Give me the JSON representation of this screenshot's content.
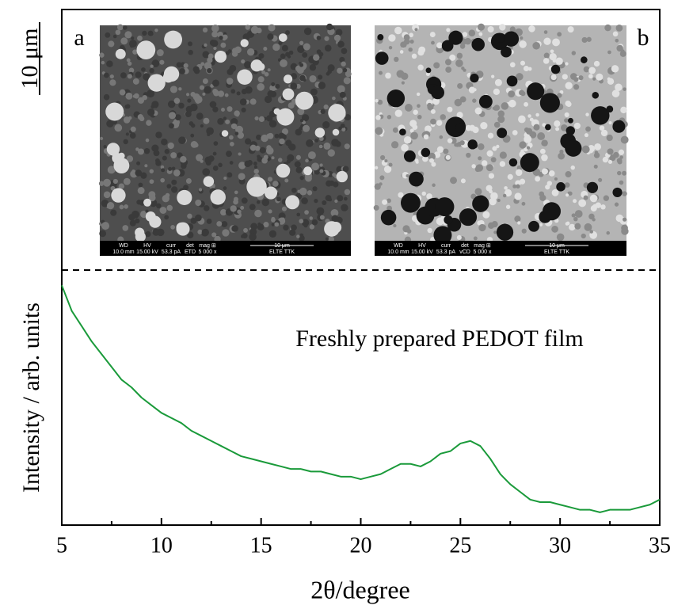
{
  "chart_data": {
    "type": "line",
    "xlabel": "2θ/degree",
    "ylabel": "Intensity / arb. units",
    "annotation": "Freshly prepared  PEDOT film",
    "scale_bar": "10 μm",
    "panels": [
      {
        "label": "a",
        "info_header": [
          "WD",
          "HV",
          "curr",
          "det",
          "mag ⊞",
          "10 μm"
        ],
        "info_values": [
          "10.0 mm",
          "15.00 kV",
          "53.3 pA",
          "ETD",
          "5 000 x",
          "ELTE TTK"
        ]
      },
      {
        "label": "b",
        "info_header": [
          "WD",
          "HV",
          "curr",
          "det",
          "mag ⊞",
          "10 μm"
        ],
        "info_values": [
          "10.0 mm",
          "15.00 kV",
          "53.3 pA",
          "vCD",
          "5 000 x",
          "ELTE TTK"
        ]
      }
    ],
    "x": [
      5,
      5.5,
      6,
      6.5,
      7,
      7.5,
      8,
      8.5,
      9,
      9.5,
      10,
      10.5,
      11,
      11.5,
      12,
      12.5,
      13,
      13.5,
      14,
      14.5,
      15,
      15.5,
      16,
      16.5,
      17,
      17.5,
      18,
      18.5,
      19,
      19.5,
      20,
      20.5,
      21,
      21.5,
      22,
      22.5,
      23,
      23.5,
      24,
      24.5,
      25,
      25.5,
      26,
      26.5,
      27,
      27.5,
      28,
      28.5,
      29,
      29.5,
      30,
      30.5,
      31,
      31.5,
      32,
      32.5,
      33,
      33.5,
      34,
      34.5,
      35
    ],
    "values": [
      94,
      84,
      78,
      72,
      67,
      62,
      57,
      54,
      50,
      47,
      44,
      42,
      40,
      37,
      35,
      33,
      31,
      29,
      27,
      26,
      25,
      24,
      23,
      22,
      22,
      21,
      21,
      20,
      19,
      19,
      18,
      19,
      20,
      22,
      24,
      24,
      23,
      25,
      28,
      29,
      32,
      33,
      31,
      26,
      20,
      16,
      13,
      10,
      9,
      9,
      8,
      7,
      6,
      6,
      5,
      6,
      6,
      6,
      7,
      8,
      10
    ],
    "color": "#1a9a3a",
    "xlim": [
      5,
      35
    ],
    "xticks": [
      5,
      10,
      15,
      20,
      25,
      30,
      35
    ],
    "xminorticks": [
      7.5,
      12.5,
      17.5,
      22.5,
      27.5,
      32.5
    ],
    "ylim": [
      0,
      100
    ]
  }
}
